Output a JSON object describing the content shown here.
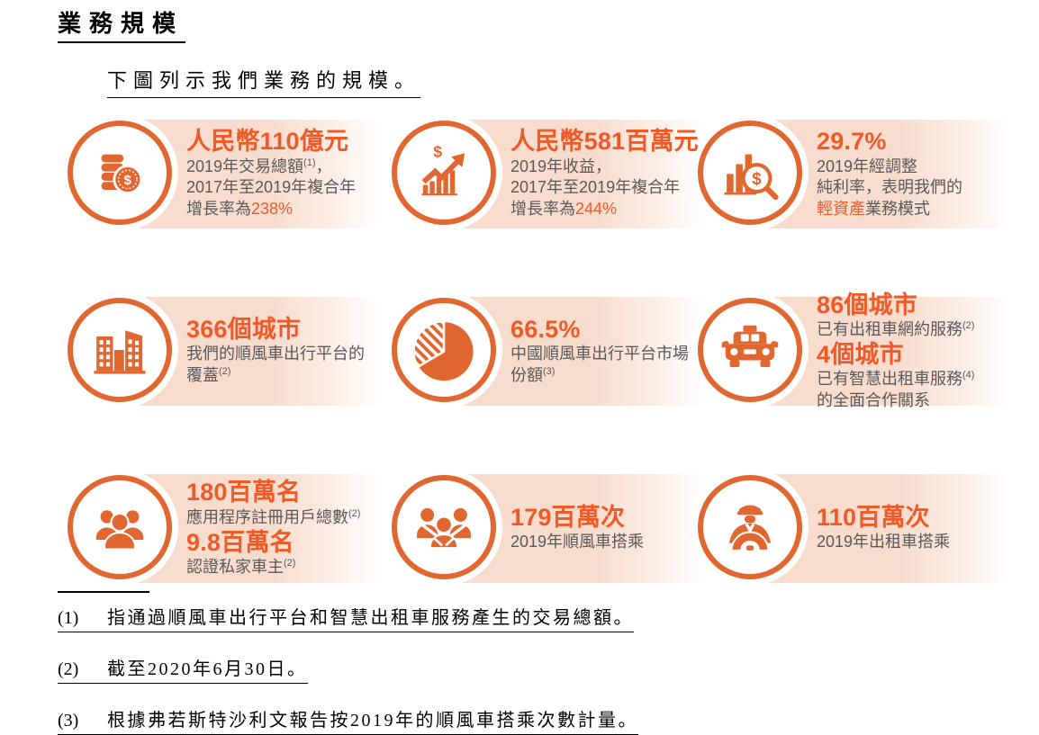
{
  "colors": {
    "accent": "#EF5A28",
    "icon_orange": "#E2662F",
    "body_text": "#58595B",
    "strip_background": "#F8DCCE",
    "underline": "#000000"
  },
  "title": "業務規模",
  "subtitle": "下圖列示我們業務的規模。",
  "cards": [
    {
      "icon": "coins-icon",
      "groups": [
        {
          "title": "人民幣110億元",
          "lines": [
            [
              {
                "t": "2019年交易總額"
              },
              {
                "t": "(1)",
                "sup": true
              },
              {
                "t": "，"
              }
            ],
            [
              {
                "t": "2017年至2019年複合年"
              }
            ],
            [
              {
                "t": "增長率為"
              },
              {
                "t": "238%",
                "hl": true
              }
            ]
          ]
        }
      ]
    },
    {
      "icon": "revenue-growth-icon",
      "groups": [
        {
          "title": "人民幣581百萬元",
          "lines": [
            [
              {
                "t": "2019年收益，"
              }
            ],
            [
              {
                "t": "2017年至2019年複合年"
              }
            ],
            [
              {
                "t": "增長率為"
              },
              {
                "t": "244%",
                "hl": true
              }
            ]
          ]
        }
      ]
    },
    {
      "icon": "profit-margin-icon",
      "groups": [
        {
          "title": "29.7%",
          "lines": [
            [
              {
                "t": "2019年經調整"
              }
            ],
            [
              {
                "t": "純利率，表明我們的"
              }
            ],
            [
              {
                "t": "輕資產",
                "hl": true
              },
              {
                "t": "業務模式"
              }
            ]
          ]
        }
      ]
    },
    {
      "icon": "city-buildings-icon",
      "groups": [
        {
          "title": "366個城市",
          "lines": [
            [
              {
                "t": "我們的順風車出行平台的"
              }
            ],
            [
              {
                "t": "覆蓋"
              },
              {
                "t": "(2)",
                "sup": true
              }
            ]
          ]
        }
      ]
    },
    {
      "icon": "pie-chart-icon",
      "groups": [
        {
          "title": "66.5%",
          "lines": [
            [
              {
                "t": "中國順風車出行平台市場"
              }
            ],
            [
              {
                "t": "份額"
              },
              {
                "t": "(3)",
                "sup": true
              }
            ]
          ]
        }
      ]
    },
    {
      "icon": "taxi-icon",
      "groups": [
        {
          "title": "86個城市",
          "lines": [
            [
              {
                "t": "已有出租車網約服務"
              },
              {
                "t": "(2)",
                "sup": true
              }
            ]
          ]
        },
        {
          "title": "4個城市",
          "lines": [
            [
              {
                "t": "已有智慧出租車服務"
              },
              {
                "t": "(4)",
                "sup": true
              }
            ],
            [
              {
                "t": "的全面合作關系"
              }
            ]
          ]
        }
      ]
    },
    {
      "icon": "users-group-icon",
      "groups": [
        {
          "title": "180百萬名",
          "lines": [
            [
              {
                "t": "應用程序註冊用戶總數"
              },
              {
                "t": "(2)",
                "sup": true
              }
            ]
          ]
        },
        {
          "title": "9.8百萬名",
          "lines": [
            [
              {
                "t": "認證私家車主"
              },
              {
                "t": "(2)",
                "sup": true
              }
            ]
          ]
        }
      ]
    },
    {
      "icon": "carpool-riders-icon",
      "groups": [
        {
          "title": "179百萬次",
          "lines": [
            [
              {
                "t": "2019年順風車搭乘"
              }
            ]
          ]
        }
      ]
    },
    {
      "icon": "chauffeur-icon",
      "groups": [
        {
          "title": "110百萬次",
          "lines": [
            [
              {
                "t": "2019年出租車搭乘"
              }
            ]
          ]
        }
      ]
    }
  ],
  "footnotes": [
    {
      "num": "(1)",
      "text": "指通過順風車出行平台和智慧出租車服務產生的交易總額。"
    },
    {
      "num": "(2)",
      "text": "截至2020年6月30日。"
    },
    {
      "num": "(3)",
      "text": "根據弗若斯特沙利文報告按2019年的順風車搭乘次數計量。"
    }
  ]
}
